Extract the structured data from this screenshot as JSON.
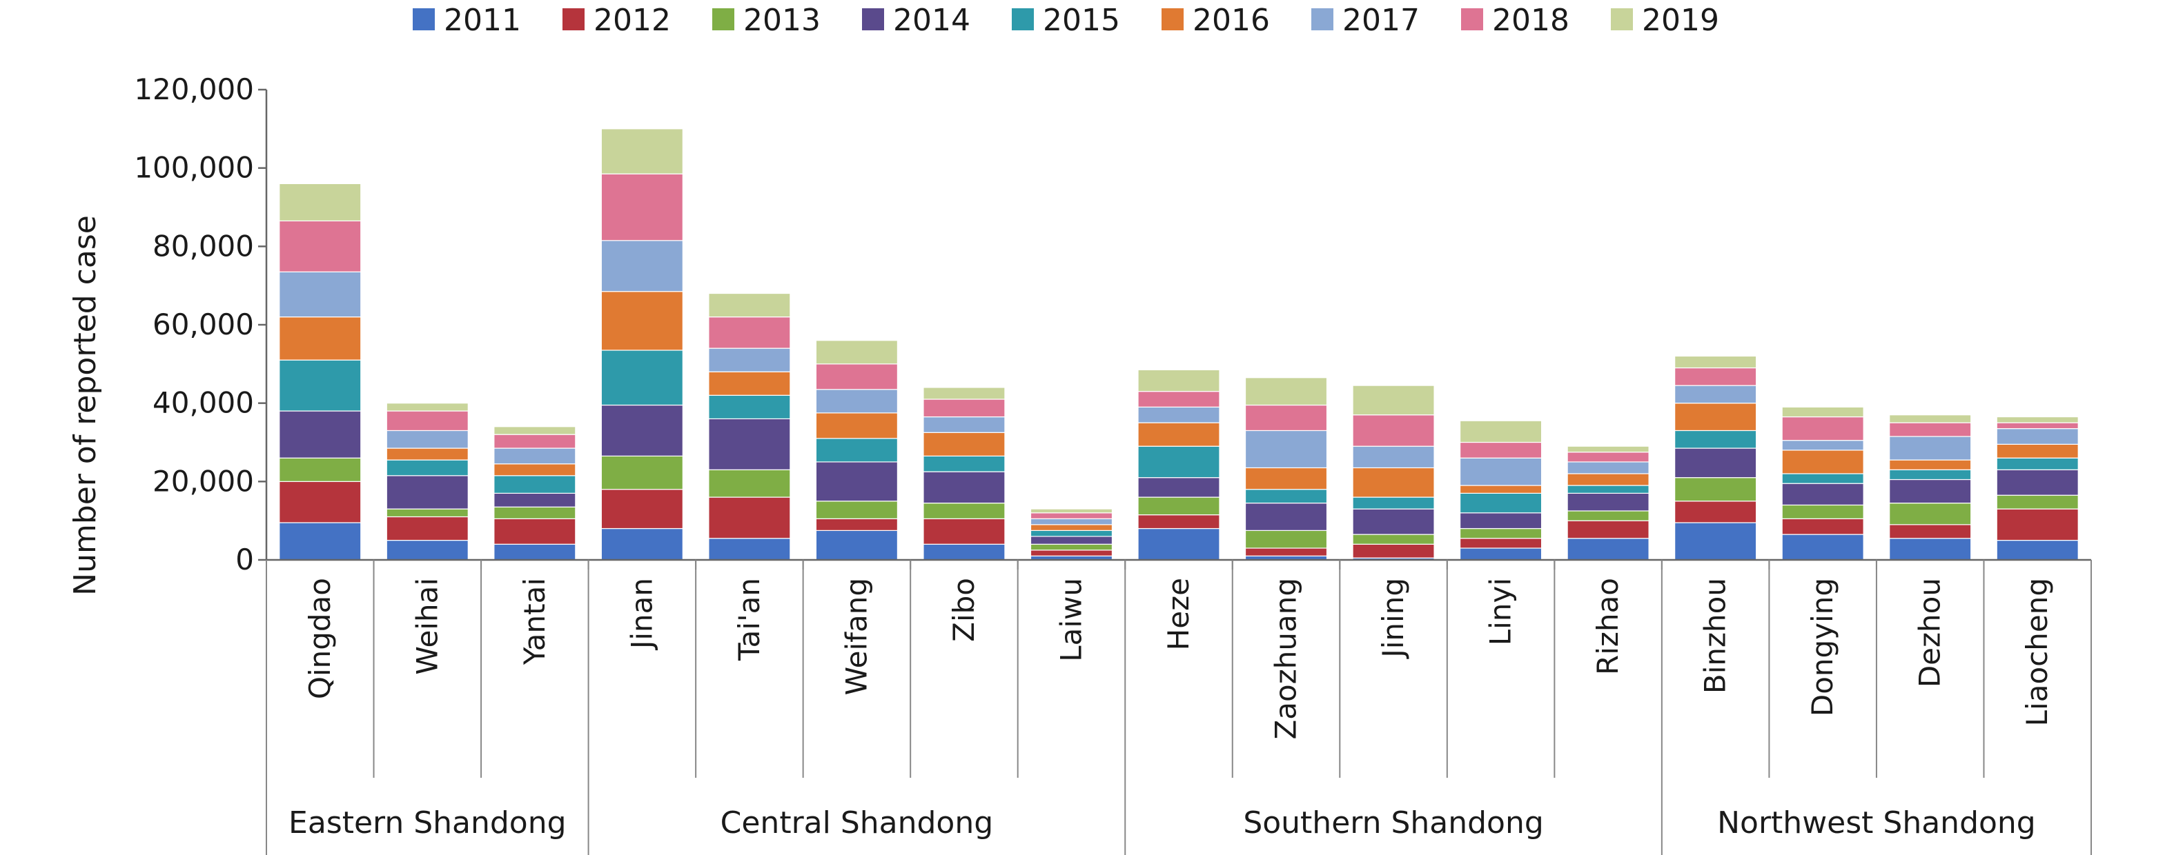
{
  "chart_data": {
    "type": "bar",
    "stacked": true,
    "ylabel": "Number of reported case",
    "xlabel": "",
    "ylim": [
      0,
      120000
    ],
    "y_ticks": [
      0,
      20000,
      40000,
      60000,
      80000,
      100000,
      120000
    ],
    "y_tick_labels": [
      "0",
      "20,000",
      "40,000",
      "60,000",
      "80,000",
      "100,000",
      "120,000"
    ],
    "legend_position": "top",
    "grid": false,
    "categories": [
      "Qingdao",
      "Weihai",
      "Yantai",
      "Jinan",
      "Tai'an",
      "Weifang",
      "Zibo",
      "Laiwu",
      "Heze",
      "Zaozhuang",
      "Jining",
      "Linyi",
      "Rizhao",
      "Binzhou",
      "Dongying",
      "Dezhou",
      "Liaocheng"
    ],
    "groups": [
      {
        "label": "Eastern Shandong",
        "count": 3
      },
      {
        "label": "Central Shandong",
        "count": 5
      },
      {
        "label": "Southern Shandong",
        "count": 5
      },
      {
        "label": "Northwest Shandong",
        "count": 4
      }
    ],
    "series": [
      {
        "name": "2011",
        "color": "#4472c4",
        "values": [
          9500,
          5000,
          4000,
          8000,
          5500,
          7500,
          4000,
          1000,
          8000,
          1000,
          500,
          3000,
          5500,
          9500,
          6500,
          5500,
          5000
        ]
      },
      {
        "name": "2012",
        "color": "#b5343c",
        "values": [
          10500,
          6000,
          6500,
          10000,
          10500,
          3000,
          6500,
          1500,
          3500,
          2000,
          3500,
          2500,
          4500,
          5500,
          4000,
          3500,
          8000
        ]
      },
      {
        "name": "2013",
        "color": "#7fae45",
        "values": [
          6000,
          2000,
          3000,
          8500,
          7000,
          4500,
          4000,
          1500,
          4500,
          4500,
          2500,
          2500,
          2500,
          6000,
          3500,
          5500,
          3500
        ]
      },
      {
        "name": "2014",
        "color": "#5a4a8c",
        "values": [
          12000,
          8500,
          3500,
          13000,
          13000,
          10000,
          8000,
          2000,
          5000,
          7000,
          6500,
          4000,
          4500,
          7500,
          5500,
          6000,
          6500
        ]
      },
      {
        "name": "2015",
        "color": "#2e9aaa",
        "values": [
          13000,
          4000,
          4500,
          14000,
          6000,
          6000,
          4000,
          1500,
          8000,
          3500,
          3000,
          5000,
          2000,
          4500,
          2500,
          2500,
          3000
        ]
      },
      {
        "name": "2016",
        "color": "#e07a32",
        "values": [
          11000,
          3000,
          3000,
          15000,
          6000,
          6500,
          6000,
          1500,
          6000,
          5500,
          7500,
          2000,
          3000,
          7000,
          6000,
          2500,
          3500
        ]
      },
      {
        "name": "2017",
        "color": "#8aa8d4",
        "values": [
          11500,
          4500,
          4000,
          13000,
          6000,
          6000,
          4000,
          1500,
          4000,
          9500,
          5500,
          7000,
          3000,
          4500,
          2500,
          6000,
          4000
        ]
      },
      {
        "name": "2018",
        "color": "#de7493",
        "values": [
          13000,
          5000,
          3500,
          17000,
          8000,
          6500,
          4500,
          1500,
          4000,
          6500,
          8000,
          4000,
          2500,
          4500,
          6000,
          3500,
          1500
        ]
      },
      {
        "name": "2019",
        "color": "#c8d49a",
        "values": [
          9500,
          2000,
          2000,
          11500,
          6000,
          6000,
          3000,
          1000,
          5500,
          7000,
          7500,
          5500,
          1500,
          3000,
          2500,
          2000,
          1500
        ]
      }
    ]
  }
}
